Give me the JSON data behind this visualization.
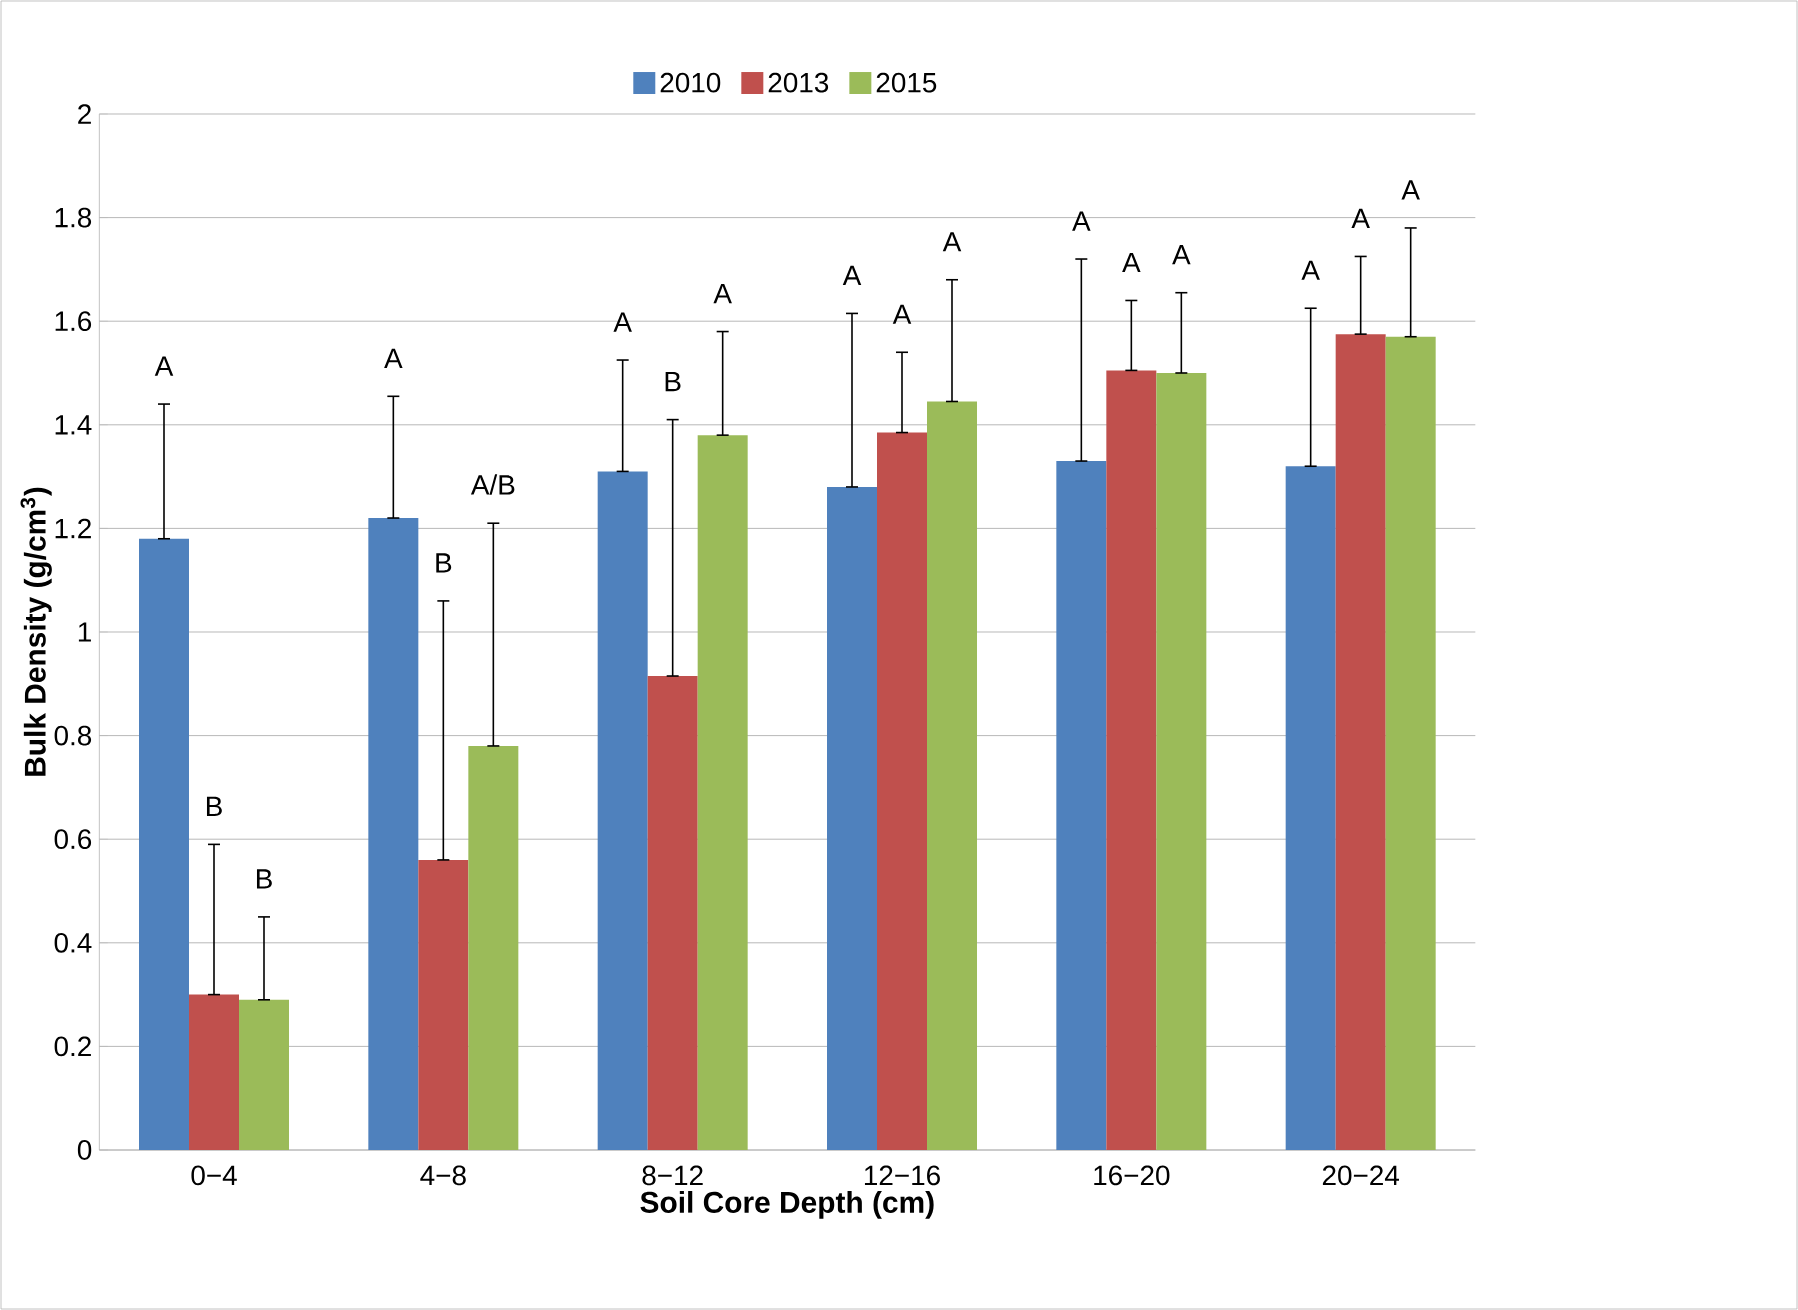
{
  "chart_data": {
    "type": "bar",
    "categories": [
      "0−4",
      "4−8",
      "8−12",
      "12−16",
      "16−20",
      "20−24"
    ],
    "series": [
      {
        "name": "2010",
        "color": "#4f81bd",
        "values": [
          1.18,
          1.22,
          1.31,
          1.28,
          1.33,
          1.32
        ],
        "errors": [
          [
            1.18,
            1.44
          ],
          [
            1.22,
            1.455
          ],
          [
            1.31,
            1.525
          ],
          [
            1.28,
            1.615
          ],
          [
            1.33,
            1.72
          ],
          [
            1.32,
            1.625
          ]
        ]
      },
      {
        "name": "2013",
        "color": "#c0504d",
        "values": [
          0.3,
          0.56,
          0.915,
          1.385,
          1.505,
          1.575
        ],
        "errors": [
          [
            0.3,
            0.59
          ],
          [
            0.56,
            1.06
          ],
          [
            0.915,
            1.41
          ],
          [
            1.385,
            1.54
          ],
          [
            1.505,
            1.64
          ],
          [
            1.575,
            1.725
          ]
        ]
      },
      {
        "name": "2015",
        "color": "#9bbb59",
        "values": [
          0.29,
          0.78,
          1.38,
          1.445,
          1.5,
          1.57
        ],
        "errors": [
          [
            0.29,
            0.45
          ],
          [
            0.78,
            1.21
          ],
          [
            1.38,
            1.58
          ],
          [
            1.445,
            1.68
          ],
          [
            1.5,
            1.655
          ],
          [
            1.57,
            1.78
          ]
        ]
      }
    ],
    "xlabel": "Soil Core Depth (cm)",
    "ylabel": "Bulk Density (g/cm$^{3}$)",
    "ylim": [
      0,
      2
    ],
    "yticks": [
      0,
      0.2,
      0.4,
      0.6,
      0.8,
      1,
      1.2,
      1.4,
      1.6,
      1.8,
      2
    ],
    "annotations": [
      "A",
      "B",
      "B",
      "A",
      "B",
      "A/B",
      "A",
      "B",
      "A",
      "A",
      "A",
      "A",
      "A",
      "A",
      "A",
      "A",
      "A",
      "A"
    ],
    "grid": "y",
    "legend": "top"
  }
}
